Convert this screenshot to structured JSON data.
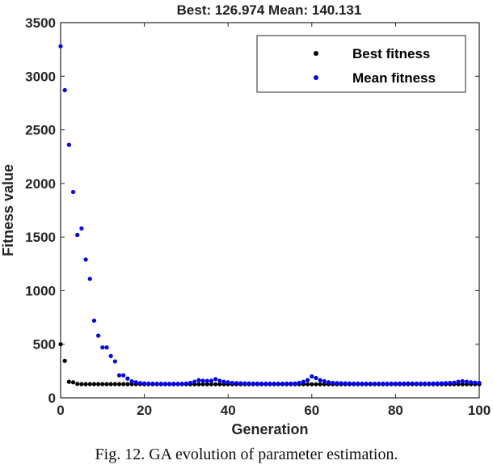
{
  "chart_data": {
    "type": "scatter",
    "title": "Best: 126.974 Mean: 140.131",
    "xlabel": "Generation",
    "ylabel": "Fitness value",
    "xlim": [
      0,
      100
    ],
    "ylim": [
      0,
      3500
    ],
    "xticks": [
      0,
      20,
      40,
      60,
      80,
      100
    ],
    "yticks": [
      0,
      500,
      1000,
      1500,
      2000,
      2500,
      3000,
      3500
    ],
    "grid": false,
    "legend_position": "top-right",
    "series": [
      {
        "name": "Best fitness",
        "color": "#000000",
        "x": [
          0,
          1,
          2,
          3,
          4,
          5,
          6,
          7,
          8,
          9,
          10,
          11,
          12,
          13,
          14,
          15,
          16,
          17,
          18,
          19,
          20,
          21,
          22,
          23,
          24,
          25,
          26,
          27,
          28,
          29,
          30,
          31,
          32,
          33,
          34,
          35,
          36,
          37,
          38,
          39,
          40,
          41,
          42,
          43,
          44,
          45,
          46,
          47,
          48,
          49,
          50,
          51,
          52,
          53,
          54,
          55,
          56,
          57,
          58,
          59,
          60,
          61,
          62,
          63,
          64,
          65,
          66,
          67,
          68,
          69,
          70,
          71,
          72,
          73,
          74,
          75,
          76,
          77,
          78,
          79,
          80,
          81,
          82,
          83,
          84,
          85,
          86,
          87,
          88,
          89,
          90,
          91,
          92,
          93,
          94,
          95,
          96,
          97,
          98,
          99,
          100
        ],
        "y": [
          500,
          345,
          150,
          145,
          130,
          128,
          128,
          128,
          128,
          128,
          128,
          128,
          128,
          128,
          128,
          128,
          128,
          128,
          128,
          128,
          127,
          127,
          127,
          127,
          127,
          127,
          127,
          127,
          127,
          127,
          127,
          127,
          127,
          127,
          127,
          127,
          127,
          127,
          127,
          127,
          127,
          127,
          127,
          127,
          127,
          127,
          127,
          127,
          127,
          127,
          127,
          127,
          127,
          127,
          127,
          127,
          127,
          127,
          127,
          127,
          127,
          127,
          127,
          127,
          127,
          127,
          127,
          127,
          127,
          127,
          127,
          127,
          127,
          127,
          127,
          127,
          127,
          127,
          127,
          127,
          127,
          127,
          127,
          127,
          127,
          127,
          127,
          127,
          127,
          127,
          127,
          127,
          127,
          127,
          127,
          127,
          127,
          127,
          127,
          127,
          127
        ]
      },
      {
        "name": "Mean fitness",
        "color": "#0000ee",
        "x": [
          0,
          1,
          2,
          3,
          4,
          5,
          6,
          7,
          8,
          9,
          10,
          11,
          12,
          13,
          14,
          15,
          16,
          17,
          18,
          19,
          20,
          21,
          22,
          23,
          24,
          25,
          26,
          27,
          28,
          29,
          30,
          31,
          32,
          33,
          34,
          35,
          36,
          37,
          38,
          39,
          40,
          41,
          42,
          43,
          44,
          45,
          46,
          47,
          48,
          49,
          50,
          51,
          52,
          53,
          54,
          55,
          56,
          57,
          58,
          59,
          60,
          61,
          62,
          63,
          64,
          65,
          66,
          67,
          68,
          69,
          70,
          71,
          72,
          73,
          74,
          75,
          76,
          77,
          78,
          79,
          80,
          81,
          82,
          83,
          84,
          85,
          86,
          87,
          88,
          89,
          90,
          91,
          92,
          93,
          94,
          95,
          96,
          97,
          98,
          99,
          100
        ],
        "y": [
          3280,
          2870,
          2360,
          1920,
          1520,
          1580,
          1290,
          1110,
          720,
          580,
          470,
          470,
          390,
          340,
          210,
          210,
          180,
          155,
          145,
          138,
          135,
          133,
          132,
          132,
          131,
          131,
          131,
          131,
          131,
          132,
          133,
          140,
          150,
          165,
          160,
          158,
          160,
          175,
          160,
          150,
          145,
          140,
          138,
          136,
          135,
          134,
          133,
          133,
          132,
          132,
          132,
          132,
          132,
          132,
          133,
          133,
          134,
          140,
          150,
          165,
          200,
          185,
          165,
          155,
          145,
          140,
          138,
          136,
          135,
          134,
          133,
          133,
          132,
          132,
          132,
          132,
          132,
          132,
          132,
          133,
          133,
          133,
          133,
          134,
          134,
          133,
          133,
          133,
          133,
          134,
          135,
          136,
          138,
          140,
          142,
          150,
          155,
          150,
          145,
          142,
          140
        ]
      }
    ]
  },
  "caption": "Fig. 12.  GA evolution of parameter estimation."
}
